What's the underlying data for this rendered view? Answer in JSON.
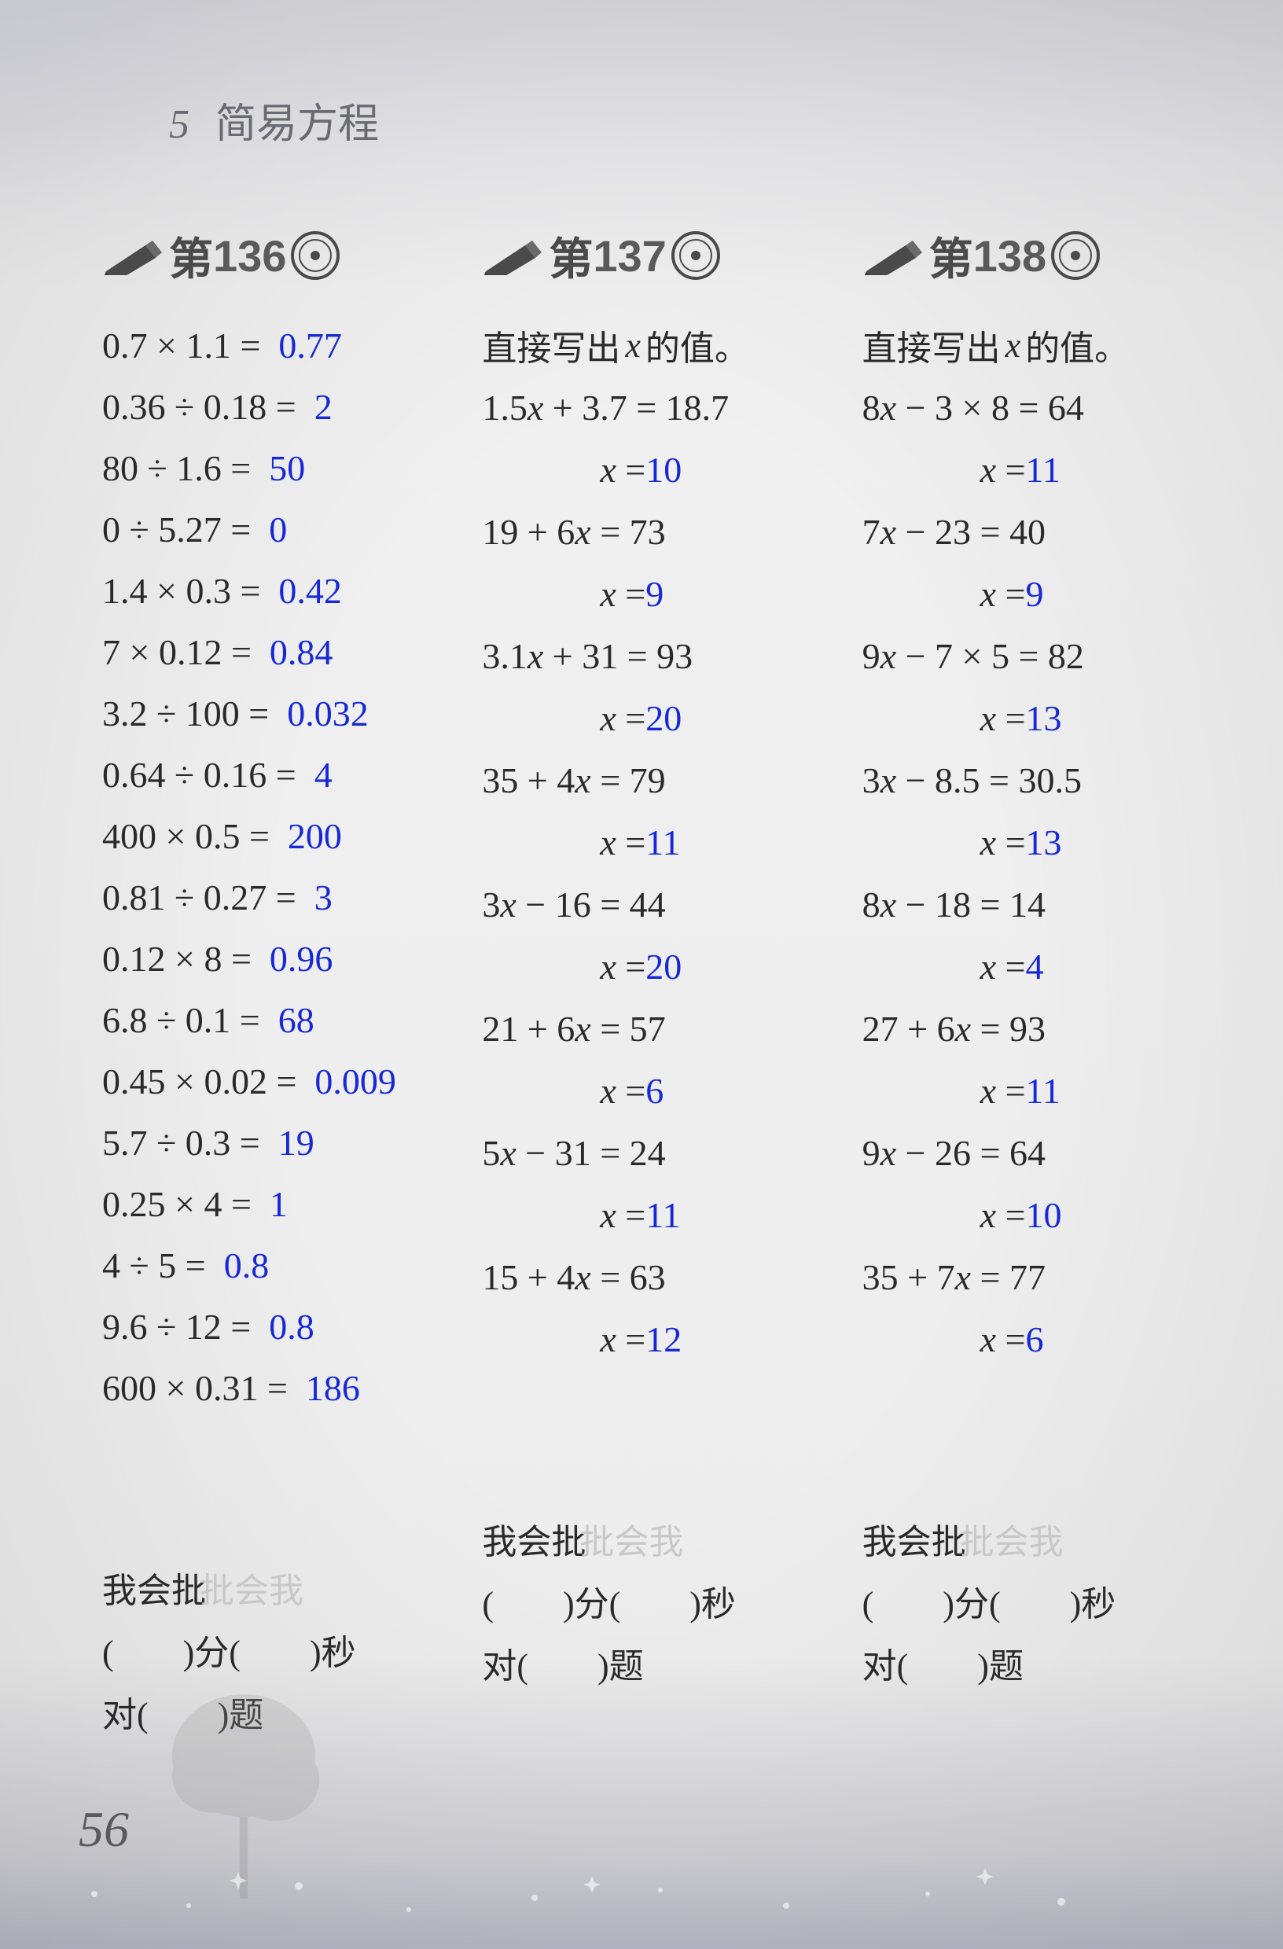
{
  "chapter": {
    "num": "5",
    "title": "简易方程"
  },
  "pageNumber": "56",
  "colors": {
    "problem": "#2a2a2a",
    "answer": "#1828d8",
    "ghost": "#c8c8c8"
  },
  "cards": [
    {
      "cardNum": "136",
      "type": "arithmetic",
      "problems": [
        {
          "expr": "0.7 × 1.1 =",
          "ans": "0.77"
        },
        {
          "expr": "0.36 ÷ 0.18 =",
          "ans": "2"
        },
        {
          "expr": "80 ÷ 1.6 =",
          "ans": "50"
        },
        {
          "expr": "0 ÷ 5.27 =",
          "ans": "0"
        },
        {
          "expr": "1.4 × 0.3 =",
          "ans": "0.42"
        },
        {
          "expr": "7 × 0.12 =",
          "ans": "0.84"
        },
        {
          "expr": "3.2 ÷ 100 =",
          "ans": "0.032"
        },
        {
          "expr": "0.64 ÷ 0.16 =",
          "ans": "4"
        },
        {
          "expr": "400 × 0.5 =",
          "ans": "200"
        },
        {
          "expr": "0.81 ÷ 0.27 =",
          "ans": "3"
        },
        {
          "expr": "0.12 × 8 =",
          "ans": "0.96"
        },
        {
          "expr": "6.8 ÷ 0.1 =",
          "ans": "68"
        },
        {
          "expr": "0.45 × 0.02 =",
          "ans": "0.009"
        },
        {
          "expr": "5.7 ÷ 0.3 =",
          "ans": "19"
        },
        {
          "expr": "0.25 × 4 =",
          "ans": "1"
        },
        {
          "expr": "4 ÷ 5 =",
          "ans": "0.8"
        },
        {
          "expr": "9.6 ÷ 12 =",
          "ans": "0.8"
        },
        {
          "expr": "600 × 0.31 =",
          "ans": "186"
        }
      ]
    },
    {
      "cardNum": "137",
      "type": "equation",
      "instruction": "直接写出|x|的值。",
      "problems": [
        {
          "eq": "1.5x + 3.7 = 18.7",
          "ans": "10"
        },
        {
          "eq": "19 + 6x = 73",
          "ans": "9"
        },
        {
          "eq": "3.1x + 31 = 93",
          "ans": "20"
        },
        {
          "eq": "35 + 4x = 79",
          "ans": "11"
        },
        {
          "eq": "3x − 16 = 44",
          "ans": "20"
        },
        {
          "eq": "21 + 6x = 57",
          "ans": "6"
        },
        {
          "eq": "5x − 31 = 24",
          "ans": "11"
        },
        {
          "eq": "15 + 4x = 63",
          "ans": "12"
        }
      ]
    },
    {
      "cardNum": "138",
      "type": "equation",
      "instruction": "直接写出|x|的值。",
      "problems": [
        {
          "eq": "8x − 3 × 8 = 64",
          "ans": "11"
        },
        {
          "eq": "7x − 23 = 40",
          "ans": "9"
        },
        {
          "eq": "9x − 7 × 5 = 82",
          "ans": "13"
        },
        {
          "eq": "3x − 8.5 = 30.5",
          "ans": "13"
        },
        {
          "eq": "8x − 18 = 14",
          "ans": "4"
        },
        {
          "eq": "27 + 6x = 93",
          "ans": "11"
        },
        {
          "eq": "9x − 26 = 64",
          "ans": "10"
        },
        {
          "eq": "35 + 7x = 77",
          "ans": "6"
        }
      ]
    }
  ],
  "footer": {
    "title": "我会批",
    "ghost": "批会我",
    "line1a": "(　　)分(　　)秒",
    "line2": "对(　　)题"
  }
}
